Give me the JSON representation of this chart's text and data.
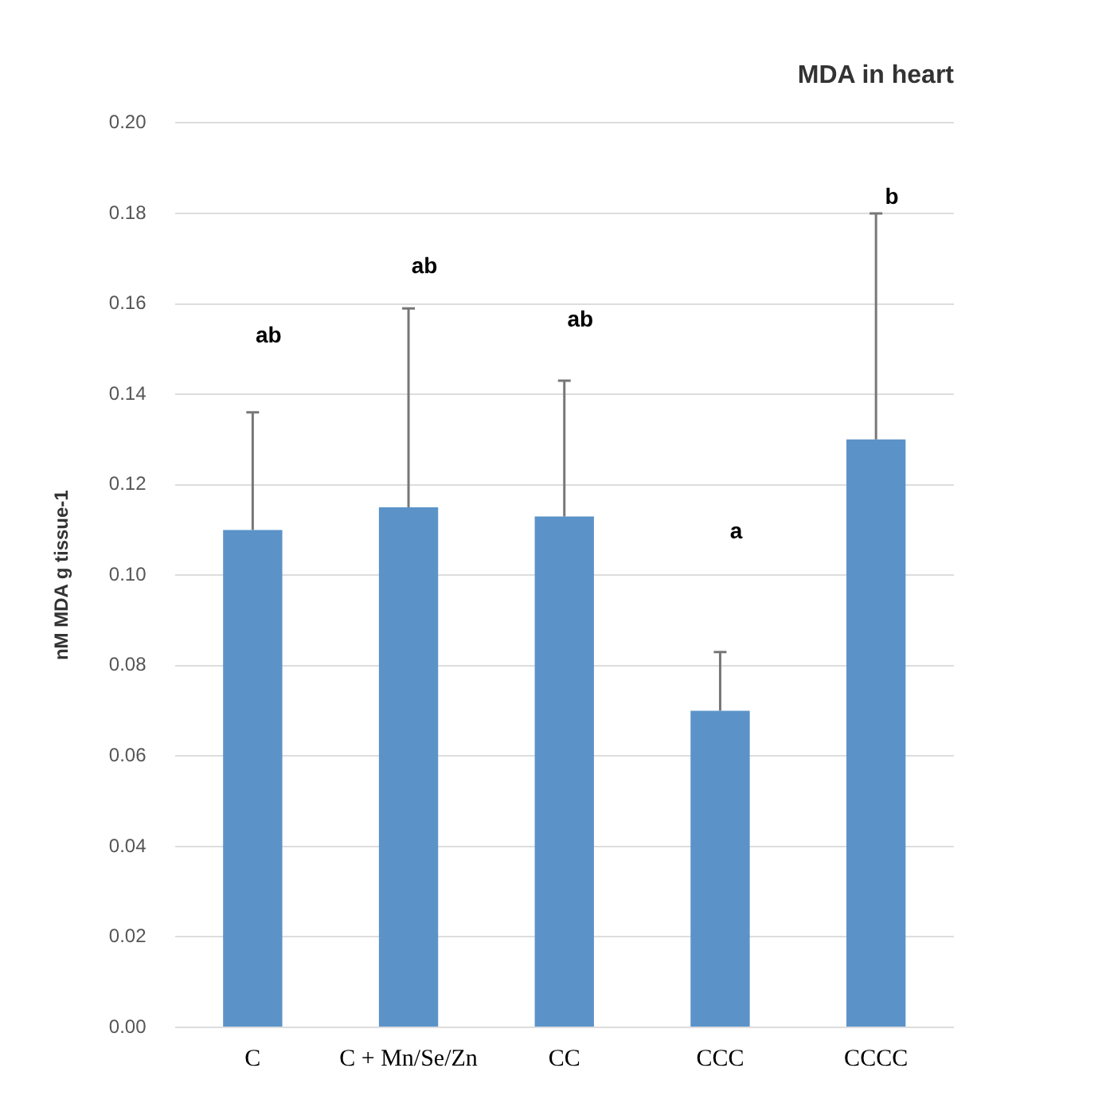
{
  "chart_data": {
    "type": "bar",
    "title": "MDA in heart",
    "ylabel": "nM MDA g tissue-1",
    "categories": [
      "C",
      "C + Mn/Se/Zn",
      "CC",
      "CCC",
      "CCCC"
    ],
    "values": [
      0.11,
      0.115,
      0.113,
      0.07,
      0.13
    ],
    "errors": [
      [
        0.11,
        0.136
      ],
      [
        0.115,
        0.159
      ],
      [
        0.113,
        0.143
      ],
      [
        0.07,
        0.083
      ],
      [
        0.13,
        0.18
      ]
    ],
    "color": "#5b93c9",
    "ylim": [
      0,
      0.2
    ],
    "yticks": [
      {
        "value": 0,
        "label": "0.00"
      },
      {
        "value": 0.02,
        "label": "0.02"
      },
      {
        "value": 0.04,
        "label": "0.04"
      },
      {
        "value": 0.06,
        "label": "0.06"
      },
      {
        "value": 0.08,
        "label": "0.08"
      },
      {
        "value": 0.1,
        "label": "0.10"
      },
      {
        "value": 0.12,
        "label": "0.12"
      },
      {
        "value": 0.14,
        "label": "0.14"
      },
      {
        "value": 0.16,
        "label": "0.16"
      },
      {
        "value": 0.18,
        "label": "0.18"
      },
      {
        "value": 0.2,
        "label": "0.20"
      }
    ],
    "grid": "y",
    "legend": false,
    "annotations": [
      "ab",
      "ab",
      "ab",
      "a",
      "b"
    ]
  }
}
